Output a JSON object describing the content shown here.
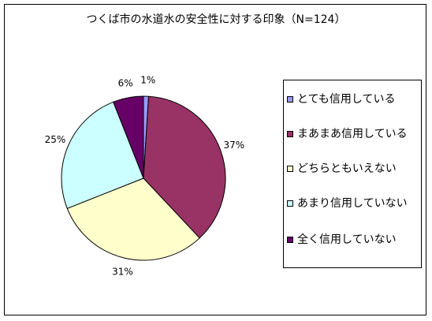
{
  "chart_data": {
    "type": "pie",
    "title": "つくば市の水道水の安全性に対する印象（N=124）",
    "categories": [
      "とても信用している",
      "まあまあ信用している",
      "どちらともいえない",
      "あまり信用していない",
      "全く信用していない"
    ],
    "values": [
      1,
      37,
      31,
      25,
      6
    ],
    "value_labels": [
      "1%",
      "37%",
      "31%",
      "25%",
      "6%"
    ],
    "colors": [
      "#9999ff",
      "#993366",
      "#ffffcc",
      "#ccffff",
      "#660066"
    ],
    "legend_position": "right"
  }
}
